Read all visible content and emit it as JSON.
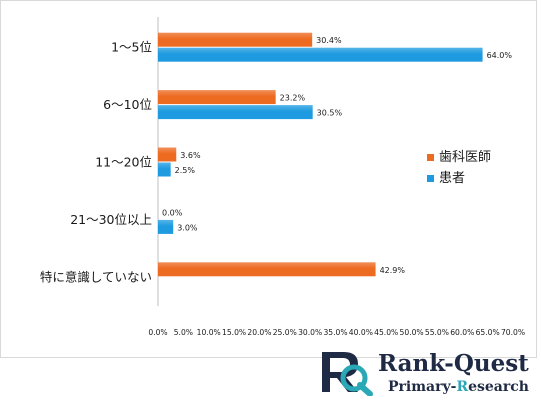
{
  "chart_data": {
    "type": "bar",
    "orientation": "horizontal",
    "categories": [
      "1～5位",
      "6～10位",
      "11～20位",
      "21～30位以上",
      "特に意識していない"
    ],
    "series": [
      {
        "name": "歯科医師",
        "color": "#ed6a21",
        "values": [
          30.4,
          23.2,
          3.6,
          0.0,
          42.9
        ],
        "labels": [
          "30.4%",
          "23.2%",
          "3.6%",
          "0.0%",
          "42.9%"
        ]
      },
      {
        "name": "患者",
        "color": "#1e9be0",
        "values": [
          64.0,
          30.5,
          2.5,
          3.0,
          null
        ],
        "labels": [
          "64.0%",
          "30.5%",
          "2.5%",
          "3.0%",
          ""
        ]
      }
    ],
    "xlim": [
      0,
      70
    ],
    "x_ticks": [
      "0.0%",
      "5.0%",
      "10.0%",
      "15.0%",
      "20.0%",
      "25.0%",
      "30.0%",
      "35.0%",
      "40.0%",
      "45.0%",
      "50.0%",
      "55.0%",
      "60.0%",
      "65.0%",
      "70.0%"
    ],
    "grid": false,
    "legend_position": "right"
  },
  "logo": {
    "name": "Rank-Quest",
    "sub_before": "Primary-",
    "sub_highlight": "R",
    "sub_after": "esearch",
    "colors": {
      "navy": "#1f2a44",
      "teal": "#2aa8b5"
    }
  }
}
